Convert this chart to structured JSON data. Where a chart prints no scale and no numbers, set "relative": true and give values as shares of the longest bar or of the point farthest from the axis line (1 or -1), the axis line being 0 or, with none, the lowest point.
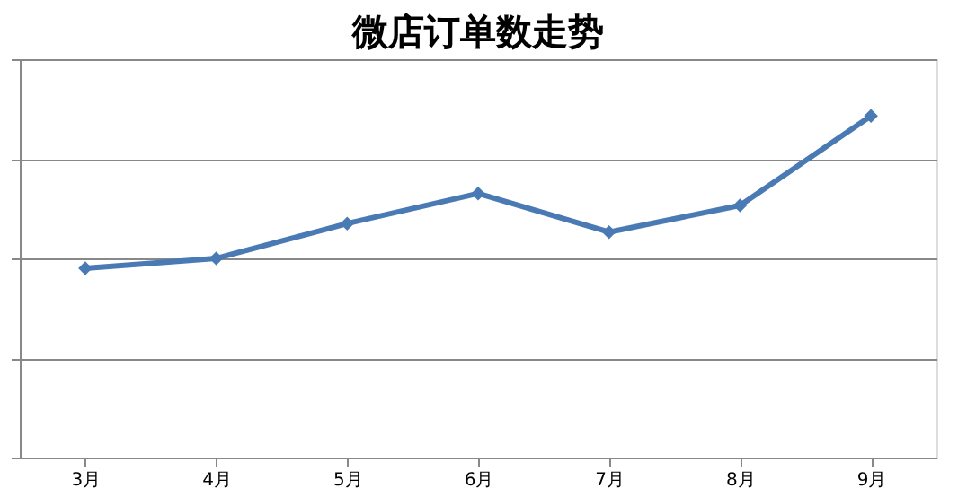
{
  "chart_data": {
    "type": "line",
    "title": "微店订单数走势",
    "relative": true,
    "categories": [
      "3月",
      "4月",
      "5月",
      "6月",
      "7月",
      "8月",
      "9月"
    ],
    "series": [
      {
        "color": "#4a7ab4",
        "values": [
          0.554,
          0.583,
          0.685,
          0.773,
          0.66,
          0.738,
          1
        ]
      }
    ],
    "marker": "diamond",
    "grid": "y"
  }
}
